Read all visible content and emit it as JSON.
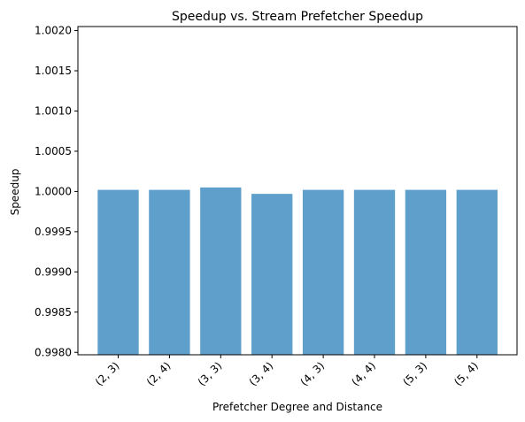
{
  "chart_data": {
    "type": "bar",
    "title": "Speedup vs. Stream Prefetcher Speedup",
    "xlabel": "Prefetcher Degree and Distance",
    "ylabel": "Speedup",
    "categories": [
      "(2, 3)",
      "(2, 4)",
      "(3, 3)",
      "(3, 4)",
      "(4, 3)",
      "(4, 4)",
      "(5, 3)",
      "(5, 4)"
    ],
    "values": [
      1.00002,
      1.00002,
      1.00005,
      0.99997,
      1.00002,
      1.00002,
      1.00002,
      1.00002
    ],
    "ylim": [
      0.99797,
      1.00205
    ],
    "yticks": [
      0.998,
      0.9985,
      0.999,
      0.9995,
      1.0,
      1.0005,
      1.001,
      1.0015,
      1.002
    ],
    "ytick_labels": [
      "0.9980",
      "0.9985",
      "0.9990",
      "0.9995",
      "1.0000",
      "1.0005",
      "1.0010",
      "1.0015",
      "1.0020"
    ],
    "bar_color": "#5f9fcb",
    "grid": false,
    "legend": "none"
  }
}
